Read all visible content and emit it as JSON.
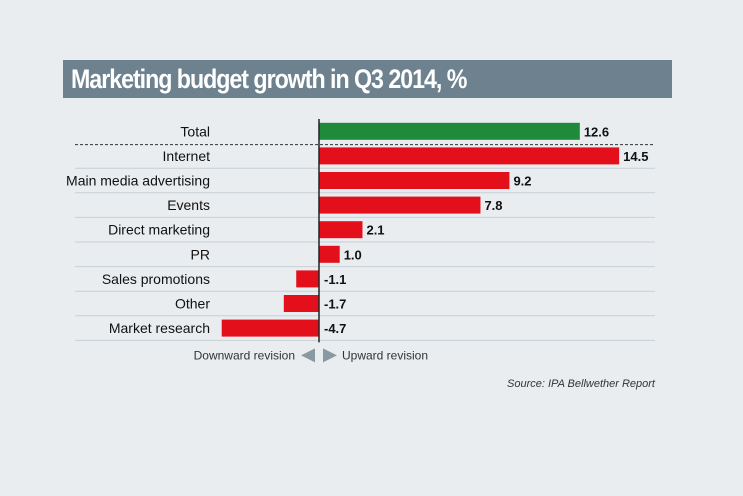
{
  "chart_data": {
    "type": "bar",
    "orientation": "horizontal",
    "title": "Marketing budget growth in Q3 2014, %",
    "categories": [
      "Total",
      "Internet",
      "Main media advertising",
      "Events",
      "Direct marketing",
      "PR",
      "Sales promotions",
      "Other",
      "Market research"
    ],
    "values": [
      12.6,
      14.5,
      9.2,
      7.8,
      2.1,
      1.0,
      -1.1,
      -1.7,
      -4.7
    ],
    "value_labels": [
      "12.6",
      "14.5",
      "9.2",
      "7.8",
      "2.1",
      "1.0",
      "-1.1",
      "-1.7",
      "-4.7"
    ],
    "xlim": [
      -5.5,
      15.5
    ],
    "grid": true,
    "colors": {
      "total": "#1f8a3a",
      "items": "#e3101c"
    },
    "annotations": {
      "downward": "Downward revision",
      "upward": "Upward revision",
      "source": "Source: IPA Bellwether Report"
    }
  }
}
